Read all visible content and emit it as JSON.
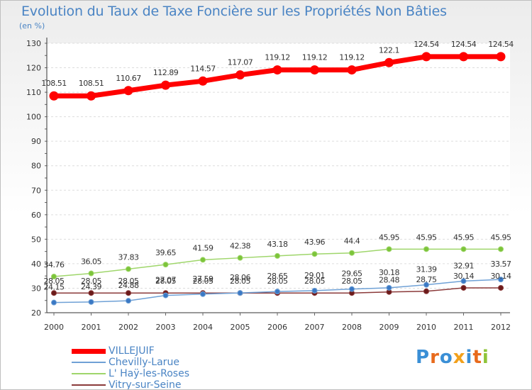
{
  "title": "Evolution du Taux de Taxe Foncière sur les Propriétés Non Bâties",
  "subtitle": "(en %)",
  "logo": {
    "text": "Proxiti",
    "letter_colors": [
      "#3a8fd6",
      "#e86a1c",
      "#3a8fd6",
      "#f2a11c",
      "#3a8fd6",
      "#e86a1c",
      "#8fc43a"
    ]
  },
  "colors": {
    "VILLEJUIF": "#ff0000",
    "Chevilly-Larue": "#6fa1d6",
    "L' Haÿ-les-Roses": "#9fd66b",
    "Vitry-sur-Seine": "#8b3a3a",
    "axis": "#333333",
    "grid": "#dddddd"
  },
  "chart_data": {
    "type": "line",
    "categories": [
      "2000",
      "2001",
      "2002",
      "2003",
      "2004",
      "2005",
      "2006",
      "2007",
      "2008",
      "2009",
      "2010",
      "2011",
      "2012"
    ],
    "ylim": [
      20,
      130
    ],
    "yticks": [
      20,
      30,
      40,
      50,
      60,
      70,
      80,
      90,
      100,
      110,
      120,
      130
    ],
    "grid": true,
    "legend_position": "bottom-left",
    "series": [
      {
        "name": "VILLEJUIF",
        "values": [
          108.51,
          108.51,
          110.67,
          112.89,
          114.57,
          117.07,
          119.12,
          119.12,
          119.12,
          122.1,
          124.54,
          124.54,
          124.54
        ],
        "labels": [
          "108.51",
          "108.51",
          "110.67",
          "112.89",
          "114.57",
          "117.07",
          "119.12",
          "119.12",
          "119.12",
          "122.1",
          "124.54",
          "124.54",
          "124.54"
        ]
      },
      {
        "name": "Chevilly-Larue",
        "values": [
          24.15,
          24.39,
          24.88,
          27.07,
          27.59,
          28.06,
          28.65,
          29.01,
          29.65,
          30.18,
          31.39,
          32.91,
          33.57
        ],
        "labels": [
          "24.15",
          "24.39",
          "24.88",
          "27.07",
          "27.59",
          "28.06",
          "28.65",
          "29.01",
          "29.65",
          "30.18",
          "31.39",
          "32.91",
          "33.57"
        ]
      },
      {
        "name": "L' Haÿ-les-Roses",
        "values": [
          34.76,
          36.05,
          37.83,
          39.65,
          41.59,
          42.38,
          43.18,
          43.96,
          44.4,
          45.95,
          45.95,
          45.95,
          45.95
        ],
        "labels": [
          "34.76",
          "36.05",
          "37.83",
          "39.65",
          "41.59",
          "42.38",
          "43.18",
          "43.96",
          "44.4",
          "45.95",
          "45.95",
          "45.95",
          "45.95"
        ]
      },
      {
        "name": "Vitry-sur-Seine",
        "values": [
          28.05,
          28.05,
          28.05,
          28.05,
          28.05,
          28.05,
          28.05,
          28.05,
          28.05,
          28.48,
          28.75,
          30.14,
          30.14
        ],
        "labels": [
          "28.05",
          "28.05",
          "28.05",
          "28.05",
          "28.05",
          "28.05",
          "28.05",
          "28.05",
          "28.05",
          "28.48",
          "28.75",
          "30.14",
          "30.14"
        ]
      }
    ]
  }
}
